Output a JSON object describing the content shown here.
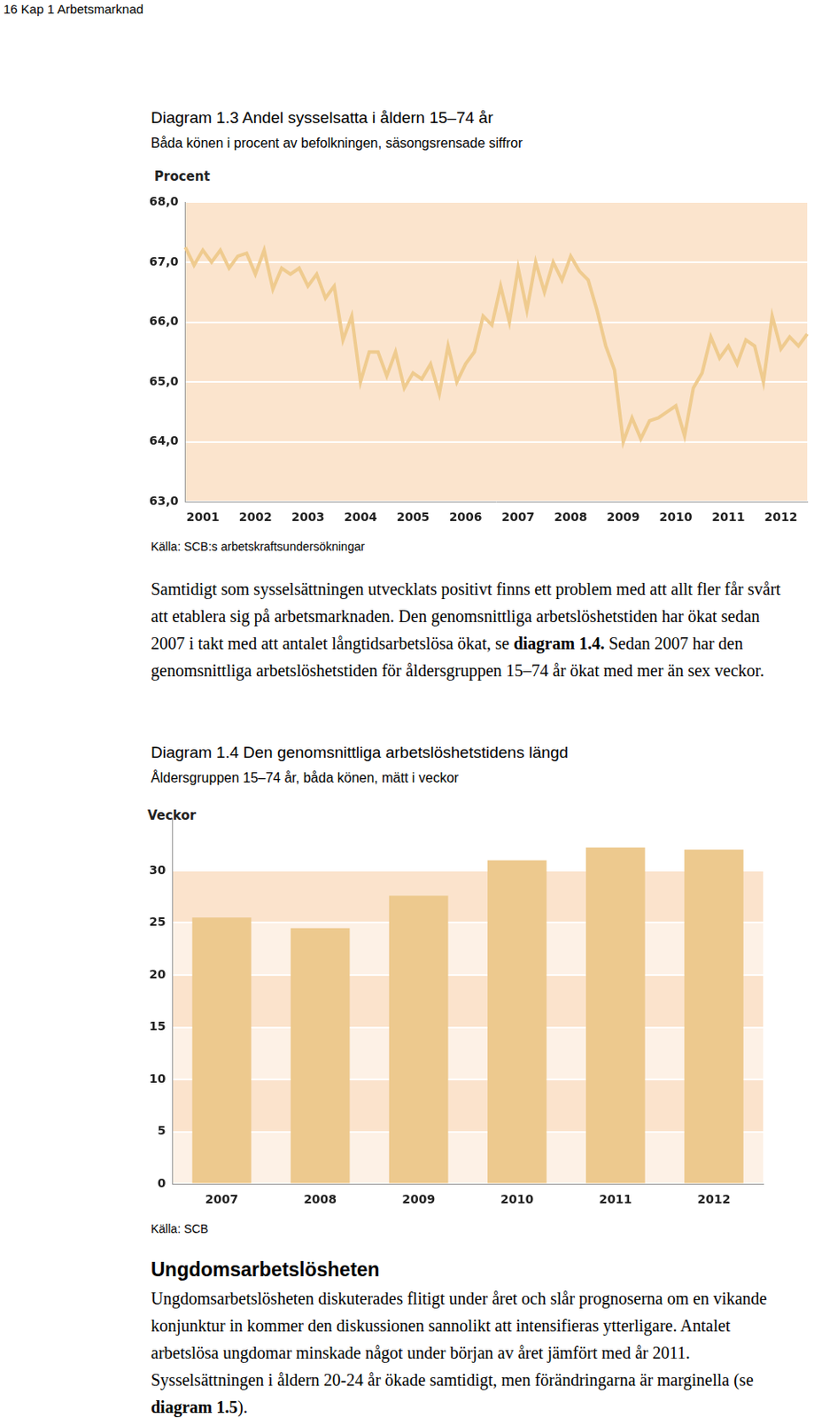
{
  "page_header": "16 Kap 1 Arbetsmarknad",
  "chart_data": [
    {
      "type": "line",
      "title": "Diagram 1.3 Andel sysselsatta i åldern 15–74 år",
      "subtitle": "Båda könen i procent av befolkningen, säsongsrensade siffror",
      "y_label": "Procent",
      "source": "Källa: SCB:s arbetskraftsundersökningar",
      "categories": [
        null,
        null,
        "2001",
        null,
        null,
        null,
        null,
        null,
        "2002",
        null,
        null,
        null,
        null,
        null,
        "2003",
        null,
        null,
        null,
        null,
        null,
        "2004",
        null,
        null,
        null,
        null,
        null,
        "2005",
        null,
        null,
        null,
        null,
        null,
        "2006",
        null,
        null,
        null,
        null,
        null,
        "2007",
        null,
        null,
        null,
        null,
        null,
        "2008",
        null,
        null,
        null,
        null,
        null,
        "2009",
        null,
        null,
        null,
        null,
        null,
        "2010",
        null,
        null,
        null,
        null,
        null,
        "2011",
        null,
        null,
        null,
        null,
        null,
        "2012",
        null,
        null,
        null
      ],
      "values": [
        67.25,
        66.95,
        67.2,
        67.0,
        67.2,
        66.9,
        67.1,
        67.15,
        66.8,
        67.2,
        66.55,
        66.9,
        66.8,
        66.9,
        66.6,
        66.8,
        66.4,
        66.6,
        65.7,
        66.1,
        65.0,
        65.5,
        65.5,
        65.1,
        65.5,
        64.9,
        65.15,
        65.05,
        65.3,
        64.8,
        65.6,
        65.0,
        65.3,
        65.5,
        66.1,
        65.95,
        66.6,
        66.0,
        66.9,
        66.2,
        67.0,
        66.5,
        67.0,
        66.7,
        67.1,
        66.85,
        66.7,
        66.2,
        65.6,
        65.2,
        64.0,
        64.4,
        64.05,
        64.35,
        64.4,
        64.5,
        64.6,
        64.1,
        64.9,
        65.15,
        65.75,
        65.4,
        65.6,
        65.3,
        65.7,
        65.6,
        65.0,
        66.1,
        65.55,
        65.75,
        65.6,
        65.8
      ],
      "color": "#efcb8f",
      "ylim": [
        63,
        68
      ],
      "yticks": [
        {
          "value": 63,
          "label": "63,0"
        },
        {
          "value": 64,
          "label": "64,0"
        },
        {
          "value": 65,
          "label": "65,0"
        },
        {
          "value": 66,
          "label": "66,0"
        },
        {
          "value": 67,
          "label": "67,0"
        },
        {
          "value": 68,
          "label": "68,0"
        }
      ],
      "grid": true
    },
    {
      "type": "bar",
      "title": "Diagram 1.4 Den genomsnittliga arbetslöshetstidens längd",
      "subtitle": "Åldersgruppen 15–74 år, båda könen, mätt i veckor",
      "y_label": "Veckor",
      "source": "Källa: SCB",
      "categories": [
        "2007",
        "2008",
        "2009",
        "2010",
        "2011",
        "2012"
      ],
      "values": [
        25.5,
        24.5,
        27.6,
        31.0,
        32.2,
        32.0
      ],
      "color": "#edc98e",
      "ylim": [
        0,
        35
      ],
      "yticks": [
        0,
        5,
        10,
        15,
        20,
        25,
        30
      ],
      "grid": true
    }
  ],
  "paragraphs": [
    [
      {
        "text": "Samtidigt som sysselsättningen utvecklats positivt finns ett problem med att allt fler får svårt att etablera sig på arbetsmarknaden. Den genomsnittliga arbetslöshetstiden har ökat sedan 2007 i takt med att antalet långtidsarbetslösa ökat, se ",
        "bold": false
      },
      {
        "text": "diagram 1.4.",
        "bold": true
      },
      {
        "text": " Sedan 2007 har den genomsnittliga arbetslöshetstiden för åldersgruppen 15–74 år ökat med mer än sex veckor.",
        "bold": false
      }
    ],
    [
      {
        "text": "Ungdomsarbetslösheten diskuterades flitigt under året och slår prognoserna om en vikande konjunktur in kommer den diskussionen sannolikt att intensifieras ytterligare. Antalet arbetslösa ungdomar minskade något under början av året jämfört med år 2011. Sysselsättningen i åldern 20-24 år ökade samtidigt, men förändringarna är marginella (se ",
        "bold": false
      },
      {
        "text": "diagram 1.5",
        "bold": true
      },
      {
        "text": ").",
        "bold": false
      }
    ]
  ],
  "heading": "Ungdomsarbetslösheten"
}
